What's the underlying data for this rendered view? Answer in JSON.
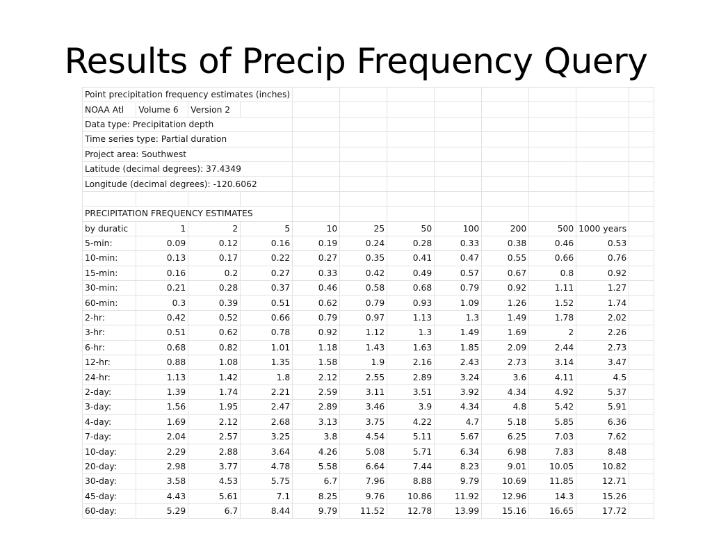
{
  "slide": {
    "title": "Results of Precip Frequency Query"
  },
  "sheet": {
    "meta": [
      "Point precipitation frequency estimates (inches)",
      "NOAA Atl",
      "Data type: Precipitation depth",
      "Time series type: Partial duration",
      "Project area: Southwest",
      "Latitude (decimal degrees): 37.4349",
      "Longitude (decimal degrees): -120.6062"
    ],
    "noaa_cells": [
      "Volume 6",
      "Version 2"
    ],
    "section_title": "PRECIPITATION FREQUENCY ESTIMATES",
    "header_label": "by duratic",
    "return_periods": [
      "1",
      "2",
      "5",
      "10",
      "25",
      "50",
      "100",
      "200",
      "500",
      "1000 years"
    ],
    "rows": [
      {
        "duration": "5-min:",
        "values": [
          "0.09",
          "0.12",
          "0.16",
          "0.19",
          "0.24",
          "0.28",
          "0.33",
          "0.38",
          "0.46",
          "0.53"
        ]
      },
      {
        "duration": "10-min:",
        "values": [
          "0.13",
          "0.17",
          "0.22",
          "0.27",
          "0.35",
          "0.41",
          "0.47",
          "0.55",
          "0.66",
          "0.76"
        ]
      },
      {
        "duration": "15-min:",
        "values": [
          "0.16",
          "0.2",
          "0.27",
          "0.33",
          "0.42",
          "0.49",
          "0.57",
          "0.67",
          "0.8",
          "0.92"
        ]
      },
      {
        "duration": "30-min:",
        "values": [
          "0.21",
          "0.28",
          "0.37",
          "0.46",
          "0.58",
          "0.68",
          "0.79",
          "0.92",
          "1.11",
          "1.27"
        ]
      },
      {
        "duration": "60-min:",
        "values": [
          "0.3",
          "0.39",
          "0.51",
          "0.62",
          "0.79",
          "0.93",
          "1.09",
          "1.26",
          "1.52",
          "1.74"
        ]
      },
      {
        "duration": "2-hr:",
        "values": [
          "0.42",
          "0.52",
          "0.66",
          "0.79",
          "0.97",
          "1.13",
          "1.3",
          "1.49",
          "1.78",
          "2.02"
        ]
      },
      {
        "duration": "3-hr:",
        "values": [
          "0.51",
          "0.62",
          "0.78",
          "0.92",
          "1.12",
          "1.3",
          "1.49",
          "1.69",
          "2",
          "2.26"
        ]
      },
      {
        "duration": "6-hr:",
        "values": [
          "0.68",
          "0.82",
          "1.01",
          "1.18",
          "1.43",
          "1.63",
          "1.85",
          "2.09",
          "2.44",
          "2.73"
        ]
      },
      {
        "duration": "12-hr:",
        "values": [
          "0.88",
          "1.08",
          "1.35",
          "1.58",
          "1.9",
          "2.16",
          "2.43",
          "2.73",
          "3.14",
          "3.47"
        ]
      },
      {
        "duration": "24-hr:",
        "values": [
          "1.13",
          "1.42",
          "1.8",
          "2.12",
          "2.55",
          "2.89",
          "3.24",
          "3.6",
          "4.11",
          "4.5"
        ]
      },
      {
        "duration": "2-day:",
        "values": [
          "1.39",
          "1.74",
          "2.21",
          "2.59",
          "3.11",
          "3.51",
          "3.92",
          "4.34",
          "4.92",
          "5.37"
        ]
      },
      {
        "duration": "3-day:",
        "values": [
          "1.56",
          "1.95",
          "2.47",
          "2.89",
          "3.46",
          "3.9",
          "4.34",
          "4.8",
          "5.42",
          "5.91"
        ]
      },
      {
        "duration": "4-day:",
        "values": [
          "1.69",
          "2.12",
          "2.68",
          "3.13",
          "3.75",
          "4.22",
          "4.7",
          "5.18",
          "5.85",
          "6.36"
        ]
      },
      {
        "duration": "7-day:",
        "values": [
          "2.04",
          "2.57",
          "3.25",
          "3.8",
          "4.54",
          "5.11",
          "5.67",
          "6.25",
          "7.03",
          "7.62"
        ]
      },
      {
        "duration": "10-day:",
        "values": [
          "2.29",
          "2.88",
          "3.64",
          "4.26",
          "5.08",
          "5.71",
          "6.34",
          "6.98",
          "7.83",
          "8.48"
        ]
      },
      {
        "duration": "20-day:",
        "values": [
          "2.98",
          "3.77",
          "4.78",
          "5.58",
          "6.64",
          "7.44",
          "8.23",
          "9.01",
          "10.05",
          "10.82"
        ]
      },
      {
        "duration": "30-day:",
        "values": [
          "3.58",
          "4.53",
          "5.75",
          "6.7",
          "7.96",
          "8.88",
          "9.79",
          "10.69",
          "11.85",
          "12.71"
        ]
      },
      {
        "duration": "45-day:",
        "values": [
          "4.43",
          "5.61",
          "7.1",
          "8.25",
          "9.76",
          "10.86",
          "11.92",
          "12.96",
          "14.3",
          "15.26"
        ]
      },
      {
        "duration": "60-day:",
        "values": [
          "5.29",
          "6.7",
          "8.44",
          "9.79",
          "11.52",
          "12.78",
          "13.99",
          "15.16",
          "16.65",
          "17.72"
        ]
      }
    ]
  }
}
